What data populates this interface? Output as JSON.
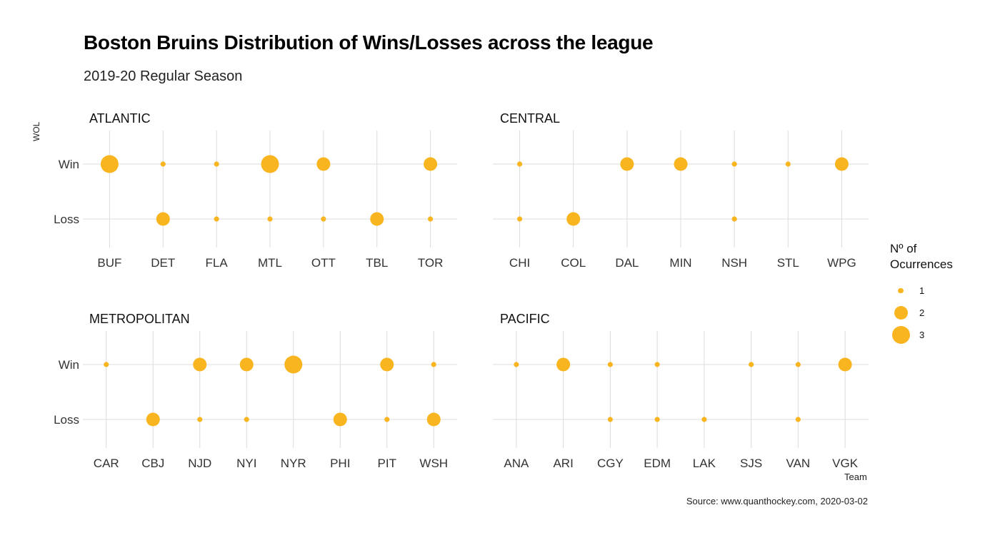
{
  "chart_data": {
    "type": "scatter",
    "title": "Boston Bruins Distribution of Wins/Losses across the league",
    "subtitle": "2019-20 Regular Season",
    "ylabel": "WOL",
    "xlabel": "Team",
    "caption": "Source: www.quanthockey.com, 2020-03-02",
    "y_categories": [
      "Win",
      "Loss"
    ],
    "size_legend": {
      "title": "Nº of Ocurrences",
      "values": [
        1,
        2,
        3
      ]
    },
    "point_color": "#f8b520",
    "grid_color": "#dcdcdc",
    "panels": [
      {
        "name": "ATLANTIC",
        "teams": [
          "BUF",
          "DET",
          "FLA",
          "MTL",
          "OTT",
          "TBL",
          "TOR"
        ],
        "win": [
          3,
          1,
          1,
          3,
          2,
          0,
          2
        ],
        "loss": [
          0,
          2,
          1,
          1,
          1,
          2,
          1
        ]
      },
      {
        "name": "CENTRAL",
        "teams": [
          "CHI",
          "COL",
          "DAL",
          "MIN",
          "NSH",
          "STL",
          "WPG"
        ],
        "win": [
          1,
          0,
          2,
          2,
          1,
          1,
          2
        ],
        "loss": [
          1,
          2,
          0,
          0,
          1,
          0,
          0
        ]
      },
      {
        "name": "METROPOLITAN",
        "teams": [
          "CAR",
          "CBJ",
          "NJD",
          "NYI",
          "NYR",
          "PHI",
          "PIT",
          "WSH"
        ],
        "win": [
          1,
          0,
          2,
          2,
          3,
          0,
          2,
          1
        ],
        "loss": [
          0,
          2,
          1,
          1,
          0,
          2,
          1,
          2
        ]
      },
      {
        "name": "PACIFIC",
        "teams": [
          "ANA",
          "ARI",
          "CGY",
          "EDM",
          "LAK",
          "SJS",
          "VAN",
          "VGK"
        ],
        "win": [
          1,
          2,
          1,
          1,
          0,
          1,
          1,
          2
        ],
        "loss": [
          0,
          0,
          1,
          1,
          1,
          0,
          1,
          0
        ]
      }
    ]
  }
}
